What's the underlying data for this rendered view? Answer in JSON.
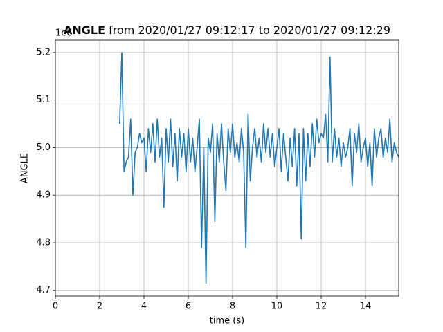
{
  "chart_data": {
    "type": "line",
    "title": {
      "bold": "ANGLE",
      "rest": " from 2020/01/27 09:12:17 to 2020/01/27 09:12:29"
    },
    "offset_text": "1e6",
    "xlabel": "time (s)",
    "ylabel": "ANGLE",
    "x": [
      2.9,
      3.0,
      3.1,
      3.2,
      3.3,
      3.4,
      3.5,
      3.6,
      3.7,
      3.8,
      3.9,
      4.0,
      4.1,
      4.2,
      4.3,
      4.4,
      4.5,
      4.6,
      4.7,
      4.8,
      4.9,
      5.0,
      5.1,
      5.2,
      5.3,
      5.4,
      5.5,
      5.6,
      5.7,
      5.8,
      5.9,
      6.0,
      6.1,
      6.2,
      6.3,
      6.4,
      6.5,
      6.6,
      6.7,
      6.8,
      6.9,
      7.0,
      7.1,
      7.2,
      7.3,
      7.4,
      7.5,
      7.6,
      7.7,
      7.8,
      7.9,
      8.0,
      8.1,
      8.2,
      8.3,
      8.4,
      8.5,
      8.6,
      8.7,
      8.8,
      8.9,
      9.0,
      9.1,
      9.2,
      9.3,
      9.4,
      9.5,
      9.6,
      9.7,
      9.8,
      9.9,
      10.0,
      10.1,
      10.2,
      10.3,
      10.4,
      10.5,
      10.6,
      10.7,
      10.8,
      10.9,
      11.0,
      11.1,
      11.2,
      11.3,
      11.4,
      11.5,
      11.6,
      11.7,
      11.8,
      11.9,
      12.0,
      12.1,
      12.2,
      12.3,
      12.4,
      12.5,
      12.6,
      12.7,
      12.8,
      12.9,
      13.0,
      13.1,
      13.2,
      13.3,
      13.4,
      13.5,
      13.6,
      13.7,
      13.8,
      13.9,
      14.0,
      14.1,
      14.2,
      14.3,
      14.4,
      14.5,
      14.6,
      14.7,
      14.8,
      14.9,
      15.0,
      15.1,
      15.2,
      15.3,
      15.4,
      15.5
    ],
    "series": [
      {
        "name": "ANGLE",
        "color": "#1f77b4",
        "values": [
          5.05,
          5.2,
          4.95,
          4.97,
          4.98,
          5.06,
          4.9,
          4.99,
          5.0,
          5.03,
          5.01,
          5.02,
          4.95,
          5.04,
          4.99,
          5.05,
          4.97,
          5.06,
          4.98,
          5.02,
          4.875,
          5.04,
          4.97,
          5.06,
          4.96,
          5.03,
          4.93,
          5.04,
          4.98,
          5.03,
          4.95,
          5.04,
          4.97,
          5.02,
          4.95,
          5.0,
          5.06,
          4.79,
          5.0,
          4.715,
          5.02,
          4.99,
          5.05,
          4.845,
          5.03,
          4.97,
          5.05,
          4.97,
          4.91,
          5.04,
          4.99,
          5.05,
          4.98,
          5.01,
          4.97,
          5.04,
          4.99,
          4.79,
          5.07,
          4.93,
          5.0,
          5.04,
          4.98,
          5.02,
          4.97,
          5.05,
          4.99,
          5.04,
          4.98,
          5.03,
          4.96,
          5.0,
          5.04,
          4.95,
          5.03,
          4.98,
          4.93,
          5.02,
          4.96,
          5.04,
          4.92,
          5.03,
          4.808,
          5.04,
          4.93,
          5.03,
          4.96,
          5.05,
          4.98,
          5.06,
          5.01,
          5.03,
          5.02,
          5.07,
          4.97,
          5.19,
          4.97,
          5.04,
          4.98,
          5.02,
          4.96,
          5.01,
          4.98,
          5.0,
          5.04,
          4.92,
          5.03,
          4.99,
          5.05,
          4.97,
          5.0,
          5.02,
          4.96,
          5.01,
          4.92,
          5.04,
          4.98,
          5.02,
          5.04,
          4.98,
          5.02,
          4.99,
          5.06,
          4.97,
          5.01,
          4.99,
          4.98
        ]
      }
    ],
    "xlim": [
      0,
      15.5
    ],
    "ylim": [
      4.688,
      5.226
    ],
    "xticks": [
      0,
      2,
      4,
      6,
      8,
      10,
      12,
      14
    ],
    "yticks": [
      4.7,
      4.8,
      4.9,
      {
        "value": 5.0,
        "label": "5.0"
      },
      5.1,
      5.2
    ],
    "grid": true
  }
}
